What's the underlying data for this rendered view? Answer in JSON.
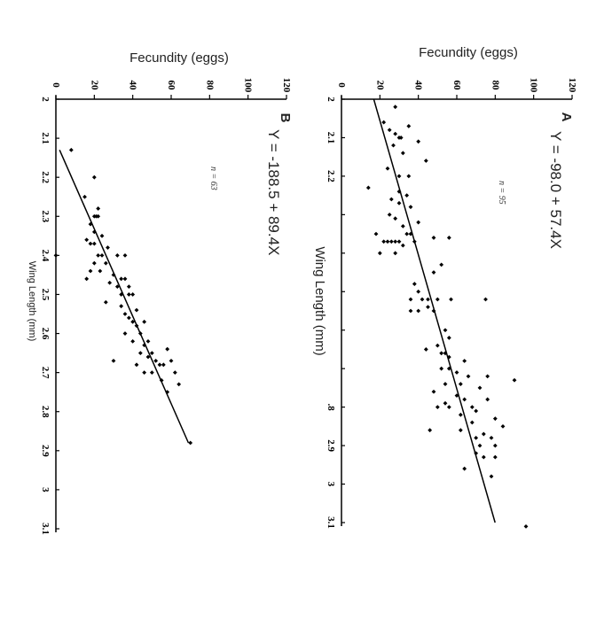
{
  "chart_data": [
    {
      "type": "scatter",
      "panel_label": "A",
      "equation": "Y = -98.0 + 57.4X",
      "n_label": "n = 95",
      "xlabel": "Wing Length (mm)",
      "ylabel": "Fecundity (eggs)",
      "xlim": [
        2,
        3.1
      ],
      "ylim": [
        0,
        120
      ],
      "x_ticks": [
        "2",
        "2.1",
        "2.2",
        "",
        "",
        "",
        "",
        "",
        ".8",
        "2.9",
        "3",
        "3.1"
      ],
      "y_ticks": [
        "0",
        "20",
        "40",
        "60",
        "80",
        "100",
        "120"
      ],
      "trendline": {
        "intercept": -98.0,
        "slope": 57.4,
        "x_range": [
          2.0,
          3.1
        ]
      },
      "points": [
        {
          "x": 2.02,
          "y": 28
        },
        {
          "x": 2.06,
          "y": 22
        },
        {
          "x": 2.07,
          "y": 35
        },
        {
          "x": 2.08,
          "y": 25
        },
        {
          "x": 2.09,
          "y": 28
        },
        {
          "x": 2.1,
          "y": 30
        },
        {
          "x": 2.1,
          "y": 31
        },
        {
          "x": 2.11,
          "y": 40
        },
        {
          "x": 2.12,
          "y": 27
        },
        {
          "x": 2.14,
          "y": 32
        },
        {
          "x": 2.16,
          "y": 44
        },
        {
          "x": 2.18,
          "y": 24
        },
        {
          "x": 2.2,
          "y": 30
        },
        {
          "x": 2.2,
          "y": 35
        },
        {
          "x": 2.23,
          "y": 14
        },
        {
          "x": 2.24,
          "y": 30
        },
        {
          "x": 2.25,
          "y": 34
        },
        {
          "x": 2.26,
          "y": 26
        },
        {
          "x": 2.27,
          "y": 30
        },
        {
          "x": 2.28,
          "y": 36
        },
        {
          "x": 2.3,
          "y": 25
        },
        {
          "x": 2.31,
          "y": 28
        },
        {
          "x": 2.32,
          "y": 40
        },
        {
          "x": 2.33,
          "y": 32
        },
        {
          "x": 2.35,
          "y": 18
        },
        {
          "x": 2.35,
          "y": 34
        },
        {
          "x": 2.35,
          "y": 36
        },
        {
          "x": 2.36,
          "y": 48
        },
        {
          "x": 2.36,
          "y": 56
        },
        {
          "x": 2.37,
          "y": 22
        },
        {
          "x": 2.37,
          "y": 24
        },
        {
          "x": 2.37,
          "y": 26
        },
        {
          "x": 2.37,
          "y": 28
        },
        {
          "x": 2.37,
          "y": 30
        },
        {
          "x": 2.37,
          "y": 38
        },
        {
          "x": 2.38,
          "y": 32
        },
        {
          "x": 2.4,
          "y": 20
        },
        {
          "x": 2.4,
          "y": 28
        },
        {
          "x": 2.43,
          "y": 52
        },
        {
          "x": 2.45,
          "y": 48
        },
        {
          "x": 2.48,
          "y": 38
        },
        {
          "x": 2.5,
          "y": 40
        },
        {
          "x": 2.52,
          "y": 36
        },
        {
          "x": 2.52,
          "y": 42
        },
        {
          "x": 2.52,
          "y": 45
        },
        {
          "x": 2.52,
          "y": 50
        },
        {
          "x": 2.52,
          "y": 57
        },
        {
          "x": 2.52,
          "y": 75
        },
        {
          "x": 2.54,
          "y": 45
        },
        {
          "x": 2.55,
          "y": 36
        },
        {
          "x": 2.55,
          "y": 40
        },
        {
          "x": 2.55,
          "y": 48
        },
        {
          "x": 2.6,
          "y": 54
        },
        {
          "x": 2.62,
          "y": 56
        },
        {
          "x": 2.64,
          "y": 50
        },
        {
          "x": 2.65,
          "y": 44
        },
        {
          "x": 2.66,
          "y": 52
        },
        {
          "x": 2.66,
          "y": 54
        },
        {
          "x": 2.67,
          "y": 56
        },
        {
          "x": 2.68,
          "y": 64
        },
        {
          "x": 2.7,
          "y": 52
        },
        {
          "x": 2.7,
          "y": 56
        },
        {
          "x": 2.71,
          "y": 60
        },
        {
          "x": 2.72,
          "y": 66
        },
        {
          "x": 2.72,
          "y": 76
        },
        {
          "x": 2.73,
          "y": 90
        },
        {
          "x": 2.74,
          "y": 54
        },
        {
          "x": 2.74,
          "y": 62
        },
        {
          "x": 2.75,
          "y": 72
        },
        {
          "x": 2.76,
          "y": 48
        },
        {
          "x": 2.77,
          "y": 60
        },
        {
          "x": 2.78,
          "y": 64
        },
        {
          "x": 2.78,
          "y": 76
        },
        {
          "x": 2.79,
          "y": 54
        },
        {
          "x": 2.8,
          "y": 50
        },
        {
          "x": 2.8,
          "y": 56
        },
        {
          "x": 2.8,
          "y": 68
        },
        {
          "x": 2.81,
          "y": 70
        },
        {
          "x": 2.82,
          "y": 62
        },
        {
          "x": 2.83,
          "y": 80
        },
        {
          "x": 2.84,
          "y": 68
        },
        {
          "x": 2.85,
          "y": 84
        },
        {
          "x": 2.86,
          "y": 46
        },
        {
          "x": 2.86,
          "y": 62
        },
        {
          "x": 2.87,
          "y": 74
        },
        {
          "x": 2.88,
          "y": 70
        },
        {
          "x": 2.88,
          "y": 78
        },
        {
          "x": 2.9,
          "y": 72
        },
        {
          "x": 2.9,
          "y": 80
        },
        {
          "x": 2.92,
          "y": 70
        },
        {
          "x": 2.93,
          "y": 74
        },
        {
          "x": 2.93,
          "y": 80
        },
        {
          "x": 2.96,
          "y": 64
        },
        {
          "x": 2.98,
          "y": 78
        },
        {
          "x": 3.11,
          "y": 96
        }
      ]
    },
    {
      "type": "scatter",
      "panel_label": "B",
      "equation": "Y = -188.5 + 89.4X",
      "n_label": "n = 63",
      "xlabel": "Wing Length (mm)",
      "ylabel": "Fecundity (eggs)",
      "xlim": [
        2,
        3.1
      ],
      "ylim": [
        0,
        120
      ],
      "x_ticks": [
        "2",
        "2.1",
        "2.2",
        "2.3",
        "2.4",
        "2.5",
        "2.6",
        "2.7",
        "2.8",
        "2.9",
        "3",
        "3.1"
      ],
      "y_ticks": [
        "0",
        "20",
        "40",
        "60",
        "80",
        "100",
        "120"
      ],
      "trendline": {
        "intercept": -188.5,
        "slope": 89.4,
        "x_range": [
          2.13,
          2.88
        ]
      },
      "points": [
        {
          "x": 2.13,
          "y": 8
        },
        {
          "x": 2.2,
          "y": 20
        },
        {
          "x": 2.25,
          "y": 15
        },
        {
          "x": 2.28,
          "y": 22
        },
        {
          "x": 2.3,
          "y": 20
        },
        {
          "x": 2.3,
          "y": 21
        },
        {
          "x": 2.3,
          "y": 22
        },
        {
          "x": 2.32,
          "y": 18
        },
        {
          "x": 2.34,
          "y": 20
        },
        {
          "x": 2.35,
          "y": 24
        },
        {
          "x": 2.36,
          "y": 16
        },
        {
          "x": 2.37,
          "y": 18
        },
        {
          "x": 2.37,
          "y": 20
        },
        {
          "x": 2.38,
          "y": 27
        },
        {
          "x": 2.4,
          "y": 0
        },
        {
          "x": 2.4,
          "y": 22
        },
        {
          "x": 2.4,
          "y": 24
        },
        {
          "x": 2.4,
          "y": 32
        },
        {
          "x": 2.4,
          "y": 36
        },
        {
          "x": 2.42,
          "y": 20
        },
        {
          "x": 2.42,
          "y": 26
        },
        {
          "x": 2.44,
          "y": 18
        },
        {
          "x": 2.44,
          "y": 23
        },
        {
          "x": 2.45,
          "y": 30
        },
        {
          "x": 2.46,
          "y": 16
        },
        {
          "x": 2.46,
          "y": 34
        },
        {
          "x": 2.46,
          "y": 36
        },
        {
          "x": 2.47,
          "y": 28
        },
        {
          "x": 2.48,
          "y": 32
        },
        {
          "x": 2.48,
          "y": 38
        },
        {
          "x": 2.5,
          "y": 34
        },
        {
          "x": 2.5,
          "y": 38
        },
        {
          "x": 2.5,
          "y": 40
        },
        {
          "x": 2.52,
          "y": 26
        },
        {
          "x": 2.53,
          "y": 34
        },
        {
          "x": 2.54,
          "y": 42
        },
        {
          "x": 2.55,
          "y": 36
        },
        {
          "x": 2.56,
          "y": 38
        },
        {
          "x": 2.57,
          "y": 40
        },
        {
          "x": 2.57,
          "y": 46
        },
        {
          "x": 2.58,
          "y": 42
        },
        {
          "x": 2.6,
          "y": 36
        },
        {
          "x": 2.6,
          "y": 44
        },
        {
          "x": 2.62,
          "y": 40
        },
        {
          "x": 2.62,
          "y": 48
        },
        {
          "x": 2.63,
          "y": 46
        },
        {
          "x": 2.64,
          "y": 58
        },
        {
          "x": 2.65,
          "y": 44
        },
        {
          "x": 2.65,
          "y": 50
        },
        {
          "x": 2.66,
          "y": 48
        },
        {
          "x": 2.67,
          "y": 30
        },
        {
          "x": 2.67,
          "y": 52
        },
        {
          "x": 2.67,
          "y": 60
        },
        {
          "x": 2.68,
          "y": 42
        },
        {
          "x": 2.68,
          "y": 54
        },
        {
          "x": 2.68,
          "y": 56
        },
        {
          "x": 2.7,
          "y": 46
        },
        {
          "x": 2.7,
          "y": 50
        },
        {
          "x": 2.7,
          "y": 62
        },
        {
          "x": 2.72,
          "y": 55
        },
        {
          "x": 2.73,
          "y": 64
        },
        {
          "x": 2.75,
          "y": 58
        },
        {
          "x": 2.88,
          "y": 70
        }
      ]
    }
  ]
}
